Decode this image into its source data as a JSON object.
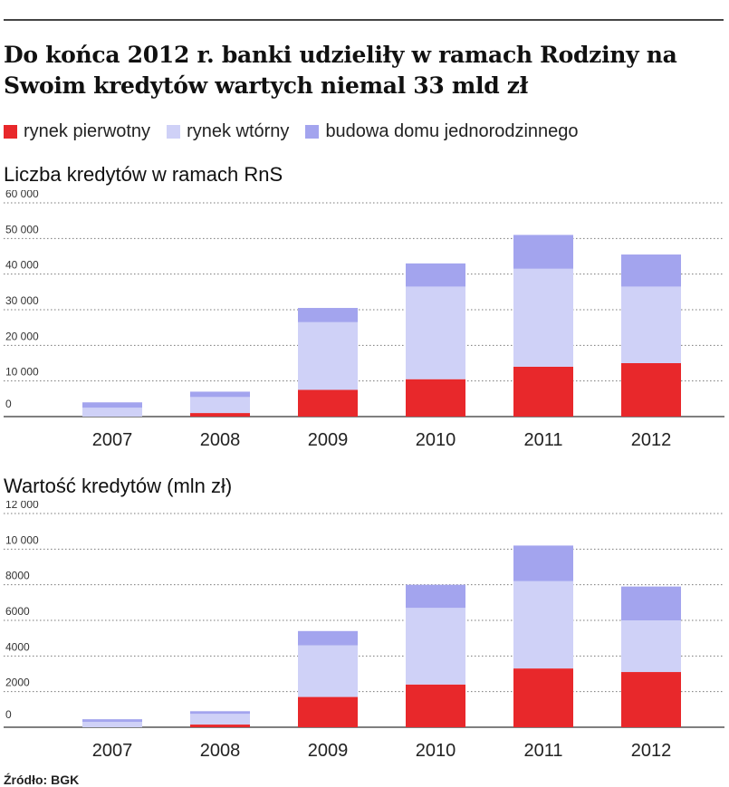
{
  "title": "Do końca 2012 r. banki udzieliły w ramach Rodziny na Swoim kredytów wartych niemal 33 mld zł",
  "legend": [
    {
      "label": "rynek pierwotny",
      "color": "#e8282b"
    },
    {
      "label": "rynek wtórny",
      "color": "#cfd1f7"
    },
    {
      "label": "budowa domu jednorodzinnego",
      "color": "#a3a4ee"
    }
  ],
  "source": "Źródło: BGK",
  "chart_data": [
    {
      "type": "bar",
      "stacked": true,
      "title": "Liczba kredytów w ramach RnS",
      "categories": [
        "2007",
        "2008",
        "2009",
        "2010",
        "2011",
        "2012"
      ],
      "ylim": [
        0,
        60000
      ],
      "yticks": [
        0,
        10000,
        20000,
        30000,
        40000,
        50000,
        60000
      ],
      "ytick_labels": [
        "0",
        "10 000",
        "20 000",
        "30 000",
        "40 000",
        "50 000",
        "60 000"
      ],
      "grid": true,
      "series": [
        {
          "name": "rynek pierwotny",
          "color": "#e8282b",
          "values": [
            0,
            1000,
            7500,
            10500,
            14000,
            15000
          ]
        },
        {
          "name": "rynek wtórny",
          "color": "#cfd1f7",
          "values": [
            2500,
            4500,
            19000,
            26000,
            27500,
            21500
          ]
        },
        {
          "name": "budowa domu jednorodzinnego",
          "color": "#a3a4ee",
          "values": [
            1500,
            1500,
            4000,
            6500,
            9500,
            9000
          ]
        }
      ]
    },
    {
      "type": "bar",
      "stacked": true,
      "title": "Wartość kredytów (mln zł)",
      "categories": [
        "2007",
        "2008",
        "2009",
        "2010",
        "2011",
        "2012"
      ],
      "ylim": [
        0,
        12000
      ],
      "yticks": [
        0,
        2000,
        4000,
        6000,
        8000,
        10000,
        12000
      ],
      "ytick_labels": [
        "0",
        "2000",
        "4000",
        "6000",
        "8000",
        "10 000",
        "12 000"
      ],
      "grid": true,
      "series": [
        {
          "name": "rynek pierwotny",
          "color": "#e8282b",
          "values": [
            0,
            150,
            1700,
            2400,
            3300,
            3100
          ]
        },
        {
          "name": "rynek wtórny",
          "color": "#cfd1f7",
          "values": [
            300,
            600,
            2900,
            4300,
            4900,
            2900
          ]
        },
        {
          "name": "budowa domu jednorodzinnego",
          "color": "#a3a4ee",
          "values": [
            150,
            150,
            800,
            1300,
            2000,
            1900
          ]
        }
      ]
    }
  ]
}
